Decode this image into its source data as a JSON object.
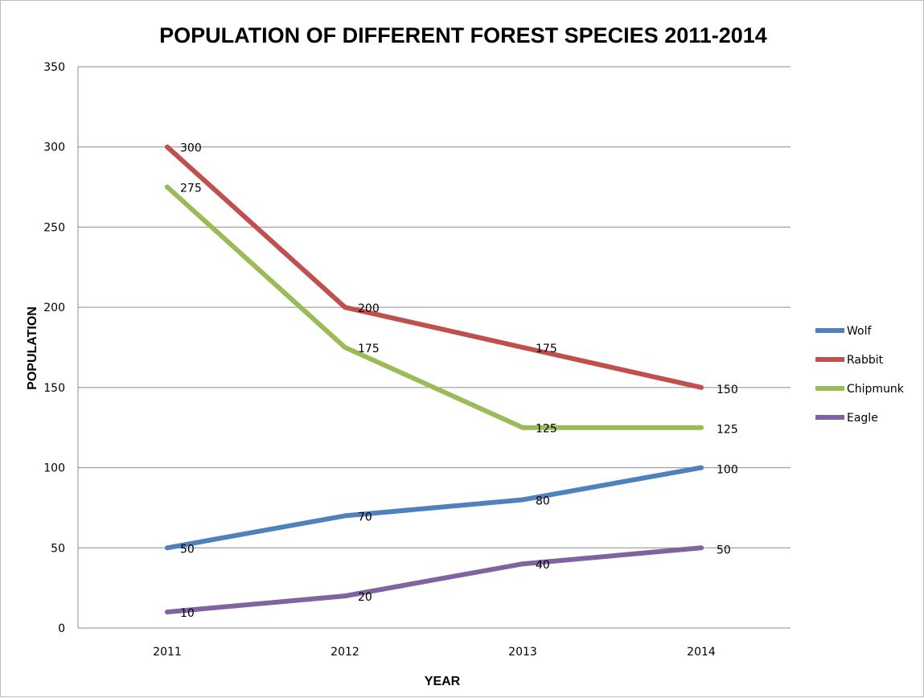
{
  "chart_data": {
    "type": "line",
    "title": "POPULATION OF DIFFERENT FOREST SPECIES 2011-2014",
    "xlabel": "YEAR",
    "ylabel": "POPULATION",
    "categories": [
      "2011",
      "2012",
      "2013",
      "2014"
    ],
    "ylim": [
      0,
      350
    ],
    "yticks": [
      0,
      50,
      100,
      150,
      200,
      250,
      300,
      350
    ],
    "grid": true,
    "legend_position": "right",
    "series": [
      {
        "name": "Wolf",
        "color": "#4F81BD",
        "values": [
          50,
          70,
          80,
          100
        ]
      },
      {
        "name": "Rabbit",
        "color": "#C0504D",
        "values": [
          300,
          200,
          175,
          150
        ]
      },
      {
        "name": "Chipmunk",
        "color": "#9BBB59",
        "values": [
          275,
          175,
          125,
          125
        ]
      },
      {
        "name": "Eagle",
        "color": "#8064A2",
        "values": [
          10,
          20,
          40,
          50
        ]
      }
    ]
  }
}
